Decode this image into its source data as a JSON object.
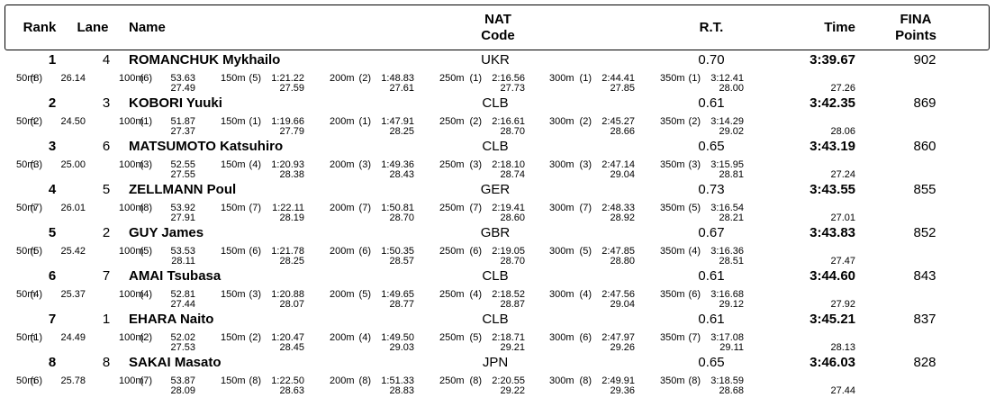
{
  "header": {
    "rank": "Rank",
    "lane": "Lane",
    "name": "Name",
    "nat": [
      "NAT",
      "Code"
    ],
    "rt": "R.T.",
    "time": "Time",
    "points": [
      "FINA",
      "Points"
    ]
  },
  "rows": [
    {
      "rank": "1",
      "lane": "4",
      "name": "ROMANCHUK Mykhailo",
      "nat": "UKR",
      "rt": "0.70",
      "time": "3:39.67",
      "points": "902",
      "splits": [
        [
          "50m",
          "(8)",
          "26.14"
        ],
        [
          "100m",
          "(6)",
          "53.63",
          "27.49"
        ],
        [
          "150m",
          "(5)",
          "1:21.22",
          "27.59"
        ],
        [
          "200m",
          "(2)",
          "1:48.83",
          "27.61"
        ],
        [
          "250m",
          "(1)",
          "2:16.56",
          "27.73"
        ],
        [
          "300m",
          "(1)",
          "2:44.41",
          "27.85"
        ],
        [
          "350m",
          "(1)",
          "3:12.41",
          "28.00"
        ]
      ],
      "last_lap": "27.26"
    },
    {
      "rank": "2",
      "lane": "3",
      "name": "KOBORI Yuuki",
      "nat": "CLB",
      "rt": "0.61",
      "time": "3:42.35",
      "points": "869",
      "splits": [
        [
          "50m",
          "(2)",
          "24.50"
        ],
        [
          "100m",
          "(1)",
          "51.87",
          "27.37"
        ],
        [
          "150m",
          "(1)",
          "1:19.66",
          "27.79"
        ],
        [
          "200m",
          "(1)",
          "1:47.91",
          "28.25"
        ],
        [
          "250m",
          "(2)",
          "2:16.61",
          "28.70"
        ],
        [
          "300m",
          "(2)",
          "2:45.27",
          "28.66"
        ],
        [
          "350m",
          "(2)",
          "3:14.29",
          "29.02"
        ]
      ],
      "last_lap": "28.06"
    },
    {
      "rank": "3",
      "lane": "6",
      "name": "MATSUMOTO Katsuhiro",
      "nat": "CLB",
      "rt": "0.65",
      "time": "3:43.19",
      "points": "860",
      "splits": [
        [
          "50m",
          "(3)",
          "25.00"
        ],
        [
          "100m",
          "(3)",
          "52.55",
          "27.55"
        ],
        [
          "150m",
          "(4)",
          "1:20.93",
          "28.38"
        ],
        [
          "200m",
          "(3)",
          "1:49.36",
          "28.43"
        ],
        [
          "250m",
          "(3)",
          "2:18.10",
          "28.74"
        ],
        [
          "300m",
          "(3)",
          "2:47.14",
          "29.04"
        ],
        [
          "350m",
          "(3)",
          "3:15.95",
          "28.81"
        ]
      ],
      "last_lap": "27.24"
    },
    {
      "rank": "4",
      "lane": "5",
      "name": "ZELLMANN Poul",
      "nat": "GER",
      "rt": "0.73",
      "time": "3:43.55",
      "points": "855",
      "splits": [
        [
          "50m",
          "(7)",
          "26.01"
        ],
        [
          "100m",
          "(8)",
          "53.92",
          "27.91"
        ],
        [
          "150m",
          "(7)",
          "1:22.11",
          "28.19"
        ],
        [
          "200m",
          "(7)",
          "1:50.81",
          "28.70"
        ],
        [
          "250m",
          "(7)",
          "2:19.41",
          "28.60"
        ],
        [
          "300m",
          "(7)",
          "2:48.33",
          "28.92"
        ],
        [
          "350m",
          "(5)",
          "3:16.54",
          "28.21"
        ]
      ],
      "last_lap": "27.01"
    },
    {
      "rank": "5",
      "lane": "2",
      "name": "GUY James",
      "nat": "GBR",
      "rt": "0.67",
      "time": "3:43.83",
      "points": "852",
      "splits": [
        [
          "50m",
          "(5)",
          "25.42"
        ],
        [
          "100m",
          "(5)",
          "53.53",
          "28.11"
        ],
        [
          "150m",
          "(6)",
          "1:21.78",
          "28.25"
        ],
        [
          "200m",
          "(6)",
          "1:50.35",
          "28.57"
        ],
        [
          "250m",
          "(6)",
          "2:19.05",
          "28.70"
        ],
        [
          "300m",
          "(5)",
          "2:47.85",
          "28.80"
        ],
        [
          "350m",
          "(4)",
          "3:16.36",
          "28.51"
        ]
      ],
      "last_lap": "27.47"
    },
    {
      "rank": "6",
      "lane": "7",
      "name": "AMAI Tsubasa",
      "nat": "CLB",
      "rt": "0.61",
      "time": "3:44.60",
      "points": "843",
      "splits": [
        [
          "50m",
          "(4)",
          "25.37"
        ],
        [
          "100m",
          "(4)",
          "52.81",
          "27.44"
        ],
        [
          "150m",
          "(3)",
          "1:20.88",
          "28.07"
        ],
        [
          "200m",
          "(5)",
          "1:49.65",
          "28.77"
        ],
        [
          "250m",
          "(4)",
          "2:18.52",
          "28.87"
        ],
        [
          "300m",
          "(4)",
          "2:47.56",
          "29.04"
        ],
        [
          "350m",
          "(6)",
          "3:16.68",
          "29.12"
        ]
      ],
      "last_lap": "27.92"
    },
    {
      "rank": "7",
      "lane": "1",
      "name": "EHARA Naito",
      "nat": "CLB",
      "rt": "0.61",
      "time": "3:45.21",
      "points": "837",
      "splits": [
        [
          "50m",
          "(1)",
          "24.49"
        ],
        [
          "100m",
          "(2)",
          "52.02",
          "27.53"
        ],
        [
          "150m",
          "(2)",
          "1:20.47",
          "28.45"
        ],
        [
          "200m",
          "(4)",
          "1:49.50",
          "29.03"
        ],
        [
          "250m",
          "(5)",
          "2:18.71",
          "29.21"
        ],
        [
          "300m",
          "(6)",
          "2:47.97",
          "29.26"
        ],
        [
          "350m",
          "(7)",
          "3:17.08",
          "29.11"
        ]
      ],
      "last_lap": "28.13"
    },
    {
      "rank": "8",
      "lane": "8",
      "name": "SAKAI Masato",
      "nat": "JPN",
      "rt": "0.65",
      "time": "3:46.03",
      "points": "828",
      "splits": [
        [
          "50m",
          "(6)",
          "25.78"
        ],
        [
          "100m",
          "(7)",
          "53.87",
          "28.09"
        ],
        [
          "150m",
          "(8)",
          "1:22.50",
          "28.63"
        ],
        [
          "200m",
          "(8)",
          "1:51.33",
          "28.83"
        ],
        [
          "250m",
          "(8)",
          "2:20.55",
          "29.22"
        ],
        [
          "300m",
          "(8)",
          "2:49.91",
          "29.36"
        ],
        [
          "350m",
          "(8)",
          "3:18.59",
          "28.68"
        ]
      ],
      "last_lap": "27.44"
    }
  ]
}
